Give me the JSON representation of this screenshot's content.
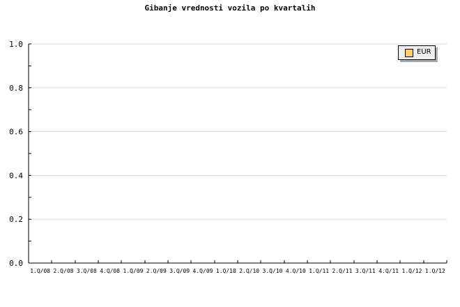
{
  "chart_data": {
    "type": "bar",
    "title": "Gibanje vrednosti vozila po kvartalih",
    "xlabel": "",
    "ylabel": "",
    "categories": [
      "1.Q/08",
      "2.Q/08",
      "3.Q/08",
      "4.Q/08",
      "1.Q/09",
      "2.Q/09",
      "3.Q/09",
      "4.Q/09",
      "1.Q/10",
      "2.Q/10",
      "3.Q/10",
      "4.Q/10",
      "1.Q/11",
      "2.Q/11",
      "3.Q/11",
      "4.Q/11",
      "1.Q/12",
      "1.Q/12"
    ],
    "series": [
      {
        "name": "EUR",
        "color": "#ffcc66",
        "values": [
          null,
          null,
          null,
          null,
          null,
          null,
          null,
          null,
          null,
          null,
          null,
          null,
          null,
          null,
          null,
          null,
          null,
          null
        ]
      }
    ],
    "ylim": [
      0,
      1.0
    ],
    "yticks": [
      "0.0",
      "0.2",
      "0.4",
      "0.6",
      "0.8",
      "1.0"
    ],
    "grid": true,
    "legend": "top-right"
  }
}
